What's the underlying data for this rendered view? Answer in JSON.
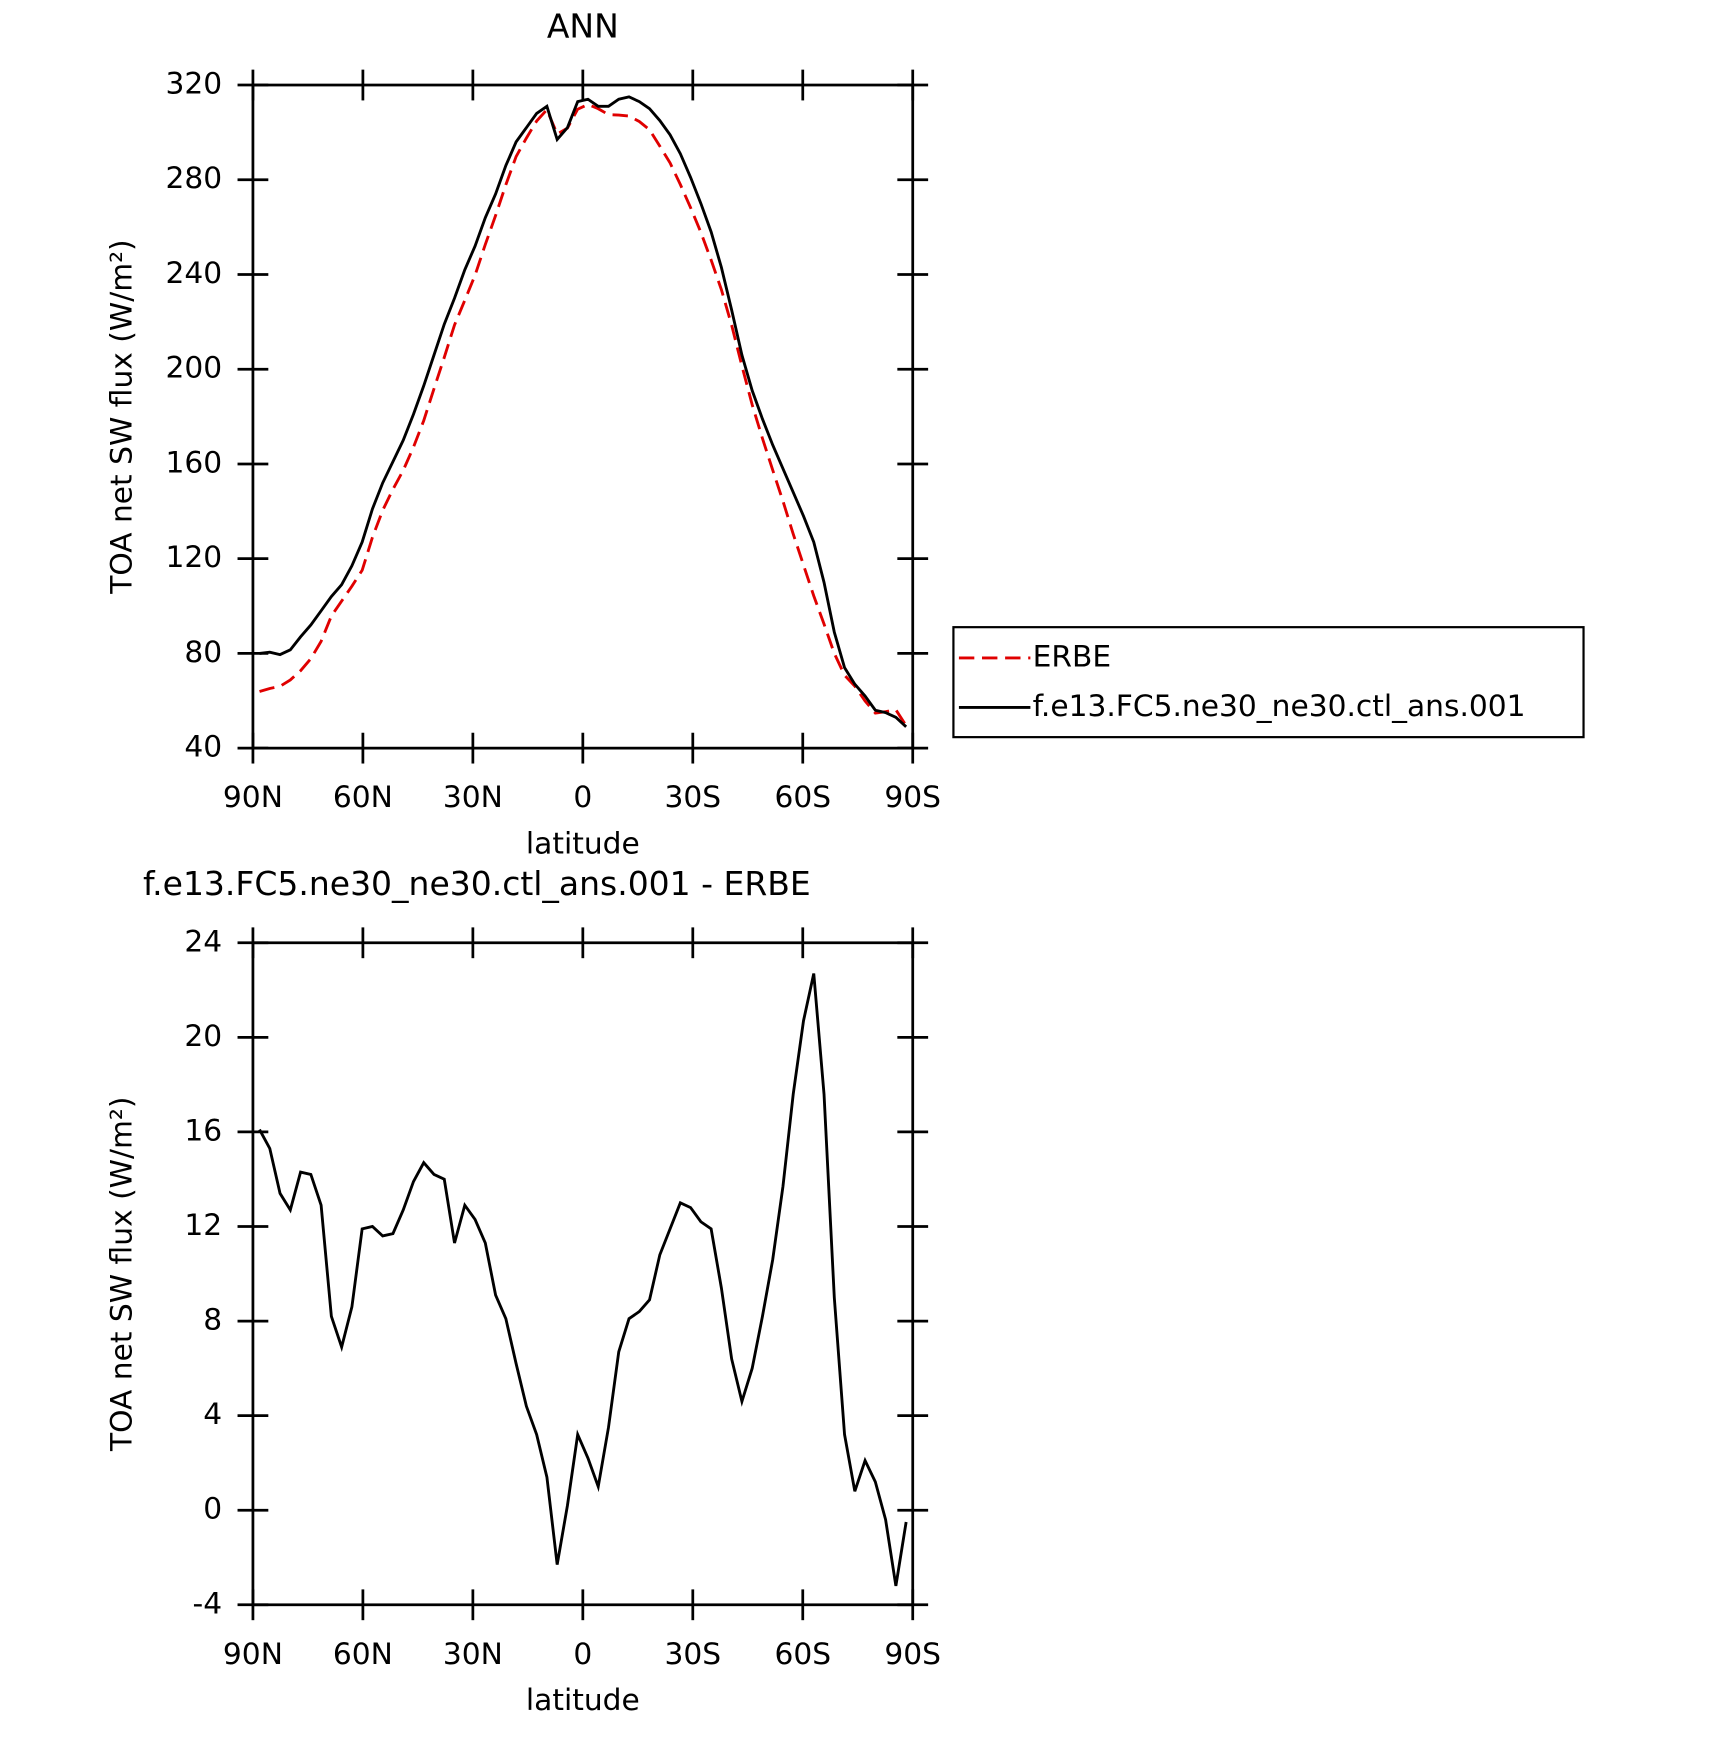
{
  "chart_data": [
    {
      "type": "line",
      "title": "ANN",
      "x_label": "latitude",
      "y_label": "TOA net SW flux (W/m²)",
      "x": [
        88.2,
        85.4,
        82.6,
        79.8,
        77.0,
        74.2,
        71.4,
        68.6,
        65.8,
        63.0,
        60.2,
        57.4,
        54.6,
        51.8,
        49.0,
        46.2,
        43.4,
        40.6,
        37.8,
        35.0,
        32.2,
        29.4,
        26.6,
        23.8,
        21.0,
        18.2,
        15.4,
        12.6,
        9.8,
        7.0,
        4.2,
        1.4,
        -1.4,
        -4.2,
        -7.0,
        -9.8,
        -12.6,
        -15.4,
        -18.2,
        -21.0,
        -23.8,
        -26.6,
        -29.4,
        -32.2,
        -35.0,
        -37.8,
        -40.6,
        -43.4,
        -46.2,
        -49.0,
        -51.8,
        -54.6,
        -57.4,
        -60.2,
        -63.0,
        -65.8,
        -68.6,
        -71.4,
        -74.2,
        -77.0,
        -79.8,
        -82.6,
        -85.4,
        -88.2
      ],
      "series": [
        {
          "name": "ERBE",
          "color": "#e00000",
          "style": "dashed",
          "values": [
            63.9,
            65.2,
            66.1,
            68.8,
            72.7,
            77.8,
            85.1,
            95.8,
            102.1,
            108.4,
            115.1,
            129,
            140.4,
            149.3,
            157.3,
            167.1,
            178.3,
            191.8,
            205,
            218.7,
            229.1,
            239.7,
            252.7,
            264.9,
            277.9,
            289.8,
            297.6,
            304.8,
            309.6,
            299.3,
            301.8,
            309.8,
            311.8,
            310,
            307.5,
            307.3,
            306.9,
            304.6,
            301.1,
            294.2,
            287.1,
            278,
            268.2,
            257.8,
            246.1,
            233.6,
            218.6,
            201.4,
            185,
            170.8,
            157.4,
            144.3,
            130.4,
            117.3,
            104.3,
            92.4,
            80,
            70.8,
            66.2,
            59.9,
            54.8,
            55.4,
            56.2,
            49.5
          ]
        },
        {
          "name": "f.e13.FC5.ne30_ne30.ctl_ans.001",
          "color": "#000000",
          "style": "solid",
          "values": [
            80,
            80.5,
            79.5,
            81.5,
            87,
            92,
            98,
            104,
            109,
            117,
            127,
            141,
            152,
            161,
            170,
            181,
            193,
            206,
            219,
            230,
            242,
            252,
            264,
            274,
            286,
            296,
            302,
            308,
            311,
            297,
            302,
            313,
            314,
            311,
            311,
            314,
            315,
            313,
            310,
            305,
            299,
            291,
            281,
            270,
            258,
            243,
            225,
            206,
            191,
            179,
            168,
            158,
            148,
            138,
            127,
            110,
            89,
            74,
            67,
            62,
            56,
            55,
            53,
            49
          ]
        }
      ],
      "xlim": [
        90,
        -90
      ],
      "xticks": [
        {
          "value": 90,
          "label": "90N"
        },
        {
          "value": 60,
          "label": "60N"
        },
        {
          "value": 30,
          "label": "30N"
        },
        0,
        {
          "value": -30,
          "label": "30S"
        },
        {
          "value": -60,
          "label": "60S"
        },
        {
          "value": -90,
          "label": "90S"
        }
      ],
      "ylim": [
        40,
        320
      ],
      "yticks": [
        40,
        80,
        120,
        160,
        200,
        240,
        280,
        320
      ],
      "legend": "right"
    },
    {
      "type": "line",
      "title": "f.e13.FC5.ne30_ne30.ctl_ans.001 - ERBE",
      "x_label": "latitude",
      "y_label": "TOA net SW flux (W/m²)",
      "x": [
        88.2,
        85.4,
        82.6,
        79.8,
        77.0,
        74.2,
        71.4,
        68.6,
        65.8,
        63.0,
        60.2,
        57.4,
        54.6,
        51.8,
        49.0,
        46.2,
        43.4,
        40.6,
        37.8,
        35.0,
        32.2,
        29.4,
        26.6,
        23.8,
        21.0,
        18.2,
        15.4,
        12.6,
        9.8,
        7.0,
        4.2,
        1.4,
        -1.4,
        -4.2,
        -7.0,
        -9.8,
        -12.6,
        -15.4,
        -18.2,
        -21.0,
        -23.8,
        -26.6,
        -29.4,
        -32.2,
        -35.0,
        -37.8,
        -40.6,
        -43.4,
        -46.2,
        -49.0,
        -51.8,
        -54.6,
        -57.4,
        -60.2,
        -63.0,
        -65.8,
        -68.6,
        -71.4,
        -74.2,
        -77.0,
        -79.8,
        -82.6,
        -85.4,
        -88.2
      ],
      "values": [
        16.1,
        15.3,
        13.4,
        12.7,
        14.3,
        14.2,
        12.9,
        8.2,
        6.9,
        8.6,
        11.9,
        12.0,
        11.6,
        11.7,
        12.7,
        13.9,
        14.7,
        14.2,
        14.0,
        11.3,
        12.9,
        12.3,
        11.3,
        9.1,
        8.1,
        6.2,
        4.4,
        3.2,
        1.4,
        -2.3,
        0.2,
        3.2,
        2.2,
        1.0,
        3.5,
        6.7,
        8.1,
        8.4,
        8.9,
        10.8,
        11.9,
        13.0,
        12.8,
        12.2,
        11.9,
        9.4,
        6.4,
        4.6,
        6.0,
        8.2,
        10.6,
        13.7,
        17.6,
        20.7,
        22.7,
        17.6,
        9.0,
        3.2,
        0.8,
        2.1,
        1.2,
        -0.4,
        -3.2,
        -0.5
      ],
      "color": "#000000",
      "xlim": [
        90,
        -90
      ],
      "xticks": [
        {
          "value": 90,
          "label": "90N"
        },
        {
          "value": 60,
          "label": "60N"
        },
        {
          "value": 30,
          "label": "30N"
        },
        0,
        {
          "value": -30,
          "label": "30S"
        },
        {
          "value": -60,
          "label": "60S"
        },
        {
          "value": -90,
          "label": "90S"
        }
      ],
      "ylim": [
        -4,
        24
      ],
      "yticks": [
        -4,
        0,
        4,
        8,
        12,
        16,
        20,
        24
      ]
    }
  ]
}
